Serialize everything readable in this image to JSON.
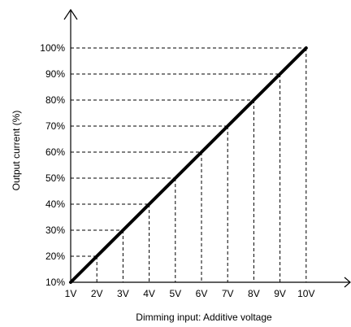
{
  "chart_data": {
    "type": "line",
    "title": "",
    "xlabel": "Dimming input: Additive voltage",
    "ylabel": "Output current (%)",
    "x_tick_labels": [
      "1V",
      "2V",
      "3V",
      "4V",
      "5V",
      "6V",
      "7V",
      "8V",
      "9V",
      "10V"
    ],
    "y_tick_labels": [
      "10%",
      "20%",
      "30%",
      "40%",
      "50%",
      "60%",
      "70%",
      "80%",
      "90%",
      "100%"
    ],
    "xlim": [
      1,
      10
    ],
    "ylim": [
      10,
      100
    ],
    "series": [
      {
        "x": [
          1,
          2,
          3,
          4,
          5,
          6,
          7,
          8,
          9,
          10
        ],
        "y": [
          10,
          20,
          30,
          40,
          50,
          60,
          70,
          80,
          90,
          100
        ]
      }
    ],
    "grid": "dashed reference lines from each point to both axes",
    "legend": "none",
    "colors": {
      "line": "#000000",
      "axis": "#000000",
      "guide": "#000000",
      "background": "#ffffff"
    }
  }
}
